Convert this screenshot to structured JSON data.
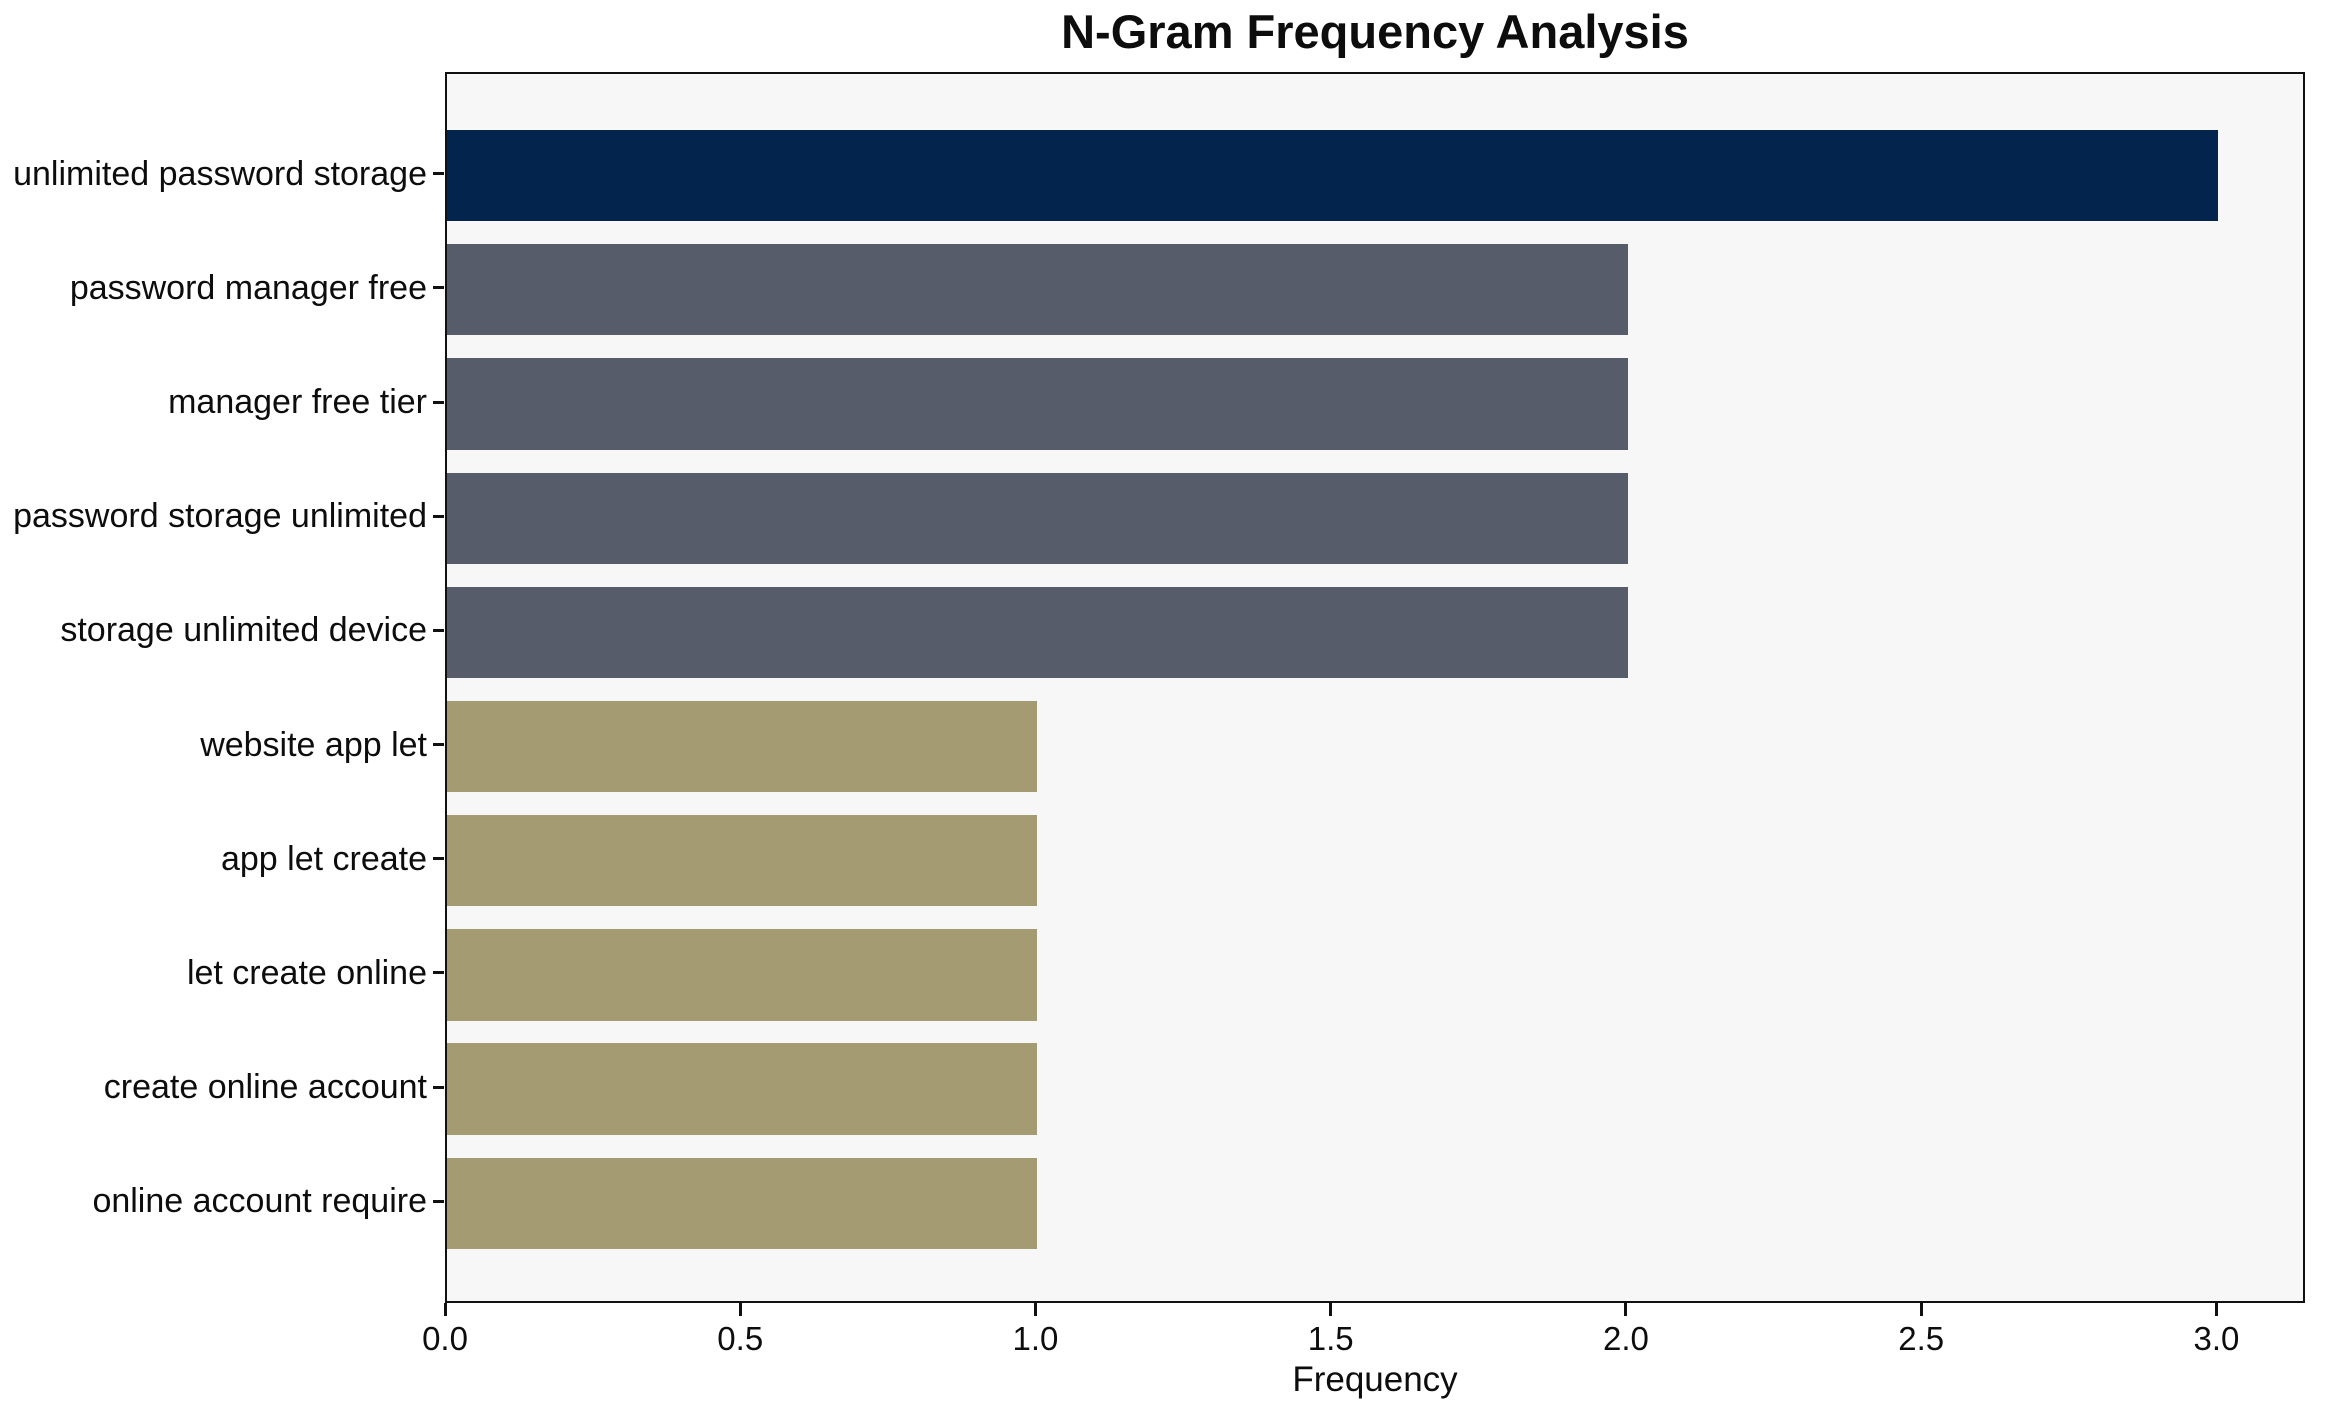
{
  "chart_data": {
    "type": "bar",
    "orientation": "horizontal",
    "title": "N-Gram Frequency Analysis",
    "xlabel": "Frequency",
    "ylabel": "",
    "categories": [
      "unlimited password storage",
      "password manager free",
      "manager free tier",
      "password storage unlimited",
      "storage unlimited device",
      "website app let",
      "app let create",
      "let create online",
      "create online account",
      "online account require"
    ],
    "values": [
      3,
      2,
      2,
      2,
      2,
      1,
      1,
      1,
      1,
      1
    ],
    "bar_colors": [
      "#03254d",
      "#575c6b",
      "#575c6b",
      "#575c6b",
      "#575c6b",
      "#a59b72",
      "#a59b72",
      "#a59b72",
      "#a59b72",
      "#a59b72"
    ],
    "xlim": [
      0,
      3.15
    ],
    "xticks": [
      0.0,
      0.5,
      1.0,
      1.5,
      2.0,
      2.5,
      3.0
    ],
    "xtick_labels": [
      "0.0",
      "0.5",
      "1.0",
      "1.5",
      "2.0",
      "2.5",
      "3.0"
    ],
    "grid": false,
    "legend": "none",
    "plot_background": "#f7f7f8",
    "figure_background": "#ffffff",
    "bar_height_fraction": 0.8
  }
}
